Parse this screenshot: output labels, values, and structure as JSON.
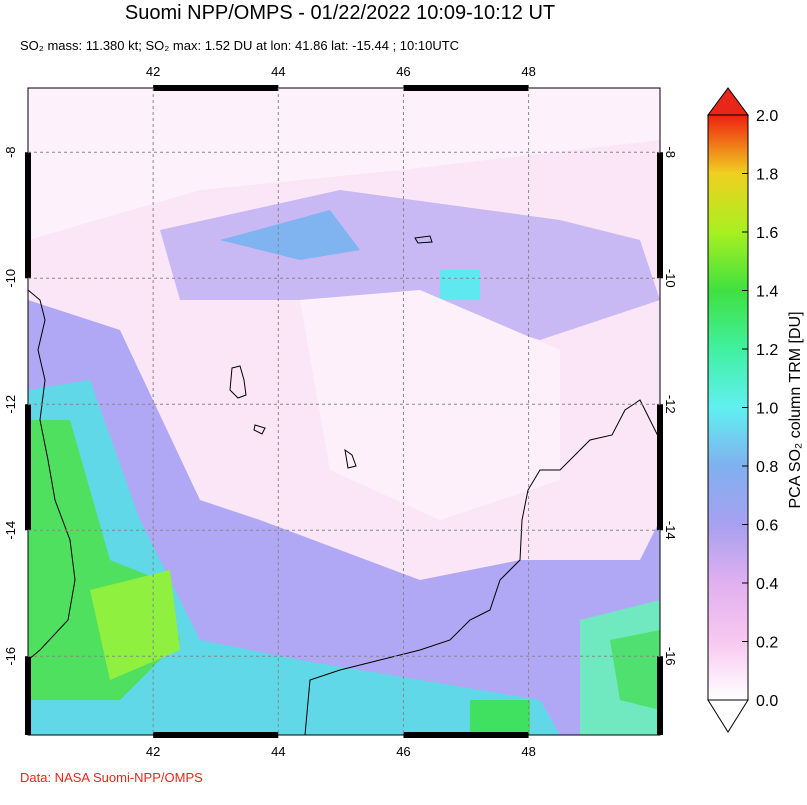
{
  "header": {
    "title": "Suomi NPP/OMPS - 01/22/2022 10:09-10:12 UT",
    "subtitle": "SO₂ mass: 11.380 kt; SO₂ max: 1.52 DU at lon: 41.86 lat: -15.44 ; 10:10UTC"
  },
  "map": {
    "lon_range": [
      40,
      50.1
    ],
    "lat_range": [
      -6.98,
      -17.25
    ],
    "lon_ticks": [
      42,
      44,
      46,
      48
    ],
    "lat_ticks": [
      -8,
      -10,
      -12,
      -14,
      -16
    ]
  },
  "colorbar": {
    "label": "PCA SO₂ column TRM [DU]",
    "range": [
      0,
      2
    ],
    "ticks": [
      {
        "value": 0,
        "label": "0.0"
      },
      {
        "value": 0.2,
        "label": "0.2"
      },
      {
        "value": 0.4,
        "label": "0.4"
      },
      {
        "value": 0.6,
        "label": "0.6"
      },
      {
        "value": 0.8,
        "label": "0.8"
      },
      {
        "value": 1,
        "label": "1.0"
      },
      {
        "value": 1.2,
        "label": "1.2"
      },
      {
        "value": 1.4,
        "label": "1.4"
      },
      {
        "value": 1.6,
        "label": "1.6"
      },
      {
        "value": 1.8,
        "label": "1.8"
      },
      {
        "value": 2,
        "label": "2.0"
      }
    ],
    "colors": [
      "#ffffff",
      "#f8c8f0",
      "#e0b0f0",
      "#a8a0f0",
      "#80b0f0",
      "#60f0f0",
      "#40f0a0",
      "#40e040",
      "#a8f020",
      "#f0d020",
      "#f02010"
    ]
  },
  "footer": {
    "credit": "Data: NASA Suomi-NPP/OMPS"
  }
}
